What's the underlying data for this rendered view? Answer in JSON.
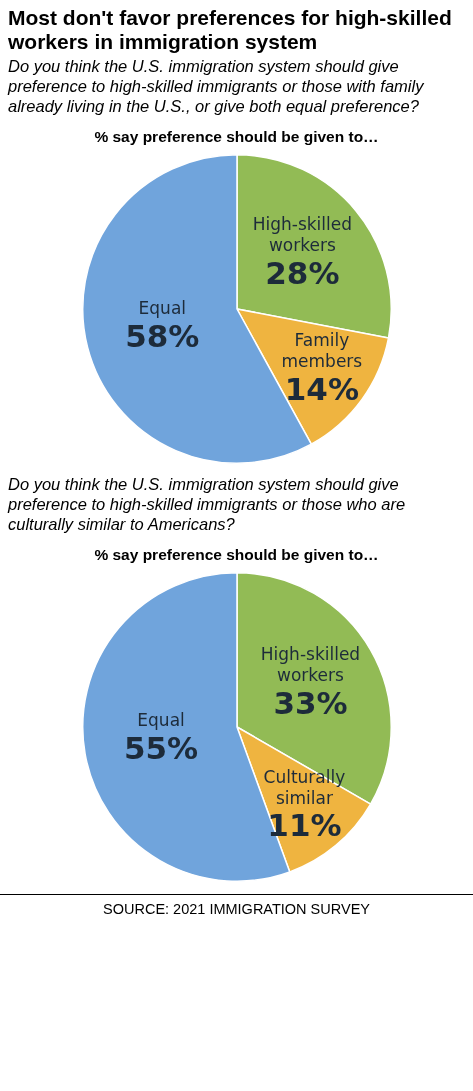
{
  "chart_data": [
    {
      "type": "pie",
      "title": "Most don't favor preferences for high-skilled workers in immigration system",
      "subtitle": "Do you think the U.S. immigration system should give preference to high-skilled immigrants or those with family already living in the U.S., or give both equal preference?",
      "annotations": [
        "% say preference should be given to…"
      ],
      "categories": [
        "High-skilled workers",
        "Family members",
        "Equal"
      ],
      "values": [
        28,
        14,
        58
      ],
      "colors": [
        "#92bb55",
        "#efb440",
        "#70a4dc"
      ],
      "value_labels": [
        "28%",
        "14%",
        "58%"
      ],
      "legend": false
    },
    {
      "type": "pie",
      "subtitle": "Do you think the U.S. immigration system should give preference to high-skilled immigrants or those who are culturally similar to Americans?",
      "annotations": [
        "% say preference should be given to…",
        "SOURCE: 2021 IMMIGRATION SURVEY"
      ],
      "categories": [
        "High-skilled workers",
        "Culturally similar",
        "Equal"
      ],
      "values": [
        33,
        11,
        55
      ],
      "colors": [
        "#92bb55",
        "#efb440",
        "#70a4dc"
      ],
      "value_labels": [
        "33%",
        "11%",
        "55%"
      ],
      "legend": false
    }
  ]
}
